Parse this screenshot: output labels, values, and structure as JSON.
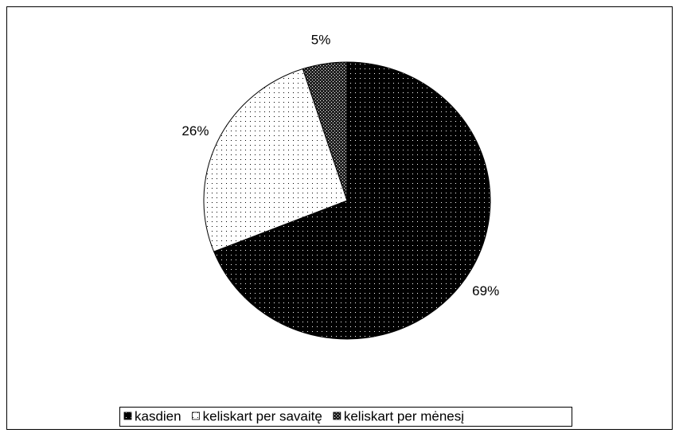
{
  "chart_data": {
    "type": "pie",
    "categories": [
      "kasdien",
      "keliskart per savaitę",
      "keliskart per mėnesį"
    ],
    "values": [
      69,
      26,
      5
    ],
    "value_labels": [
      "69%",
      "26%",
      "5%"
    ],
    "colors": [
      "#000000",
      "#ffffff",
      "#404040"
    ],
    "legend": "bottom"
  }
}
